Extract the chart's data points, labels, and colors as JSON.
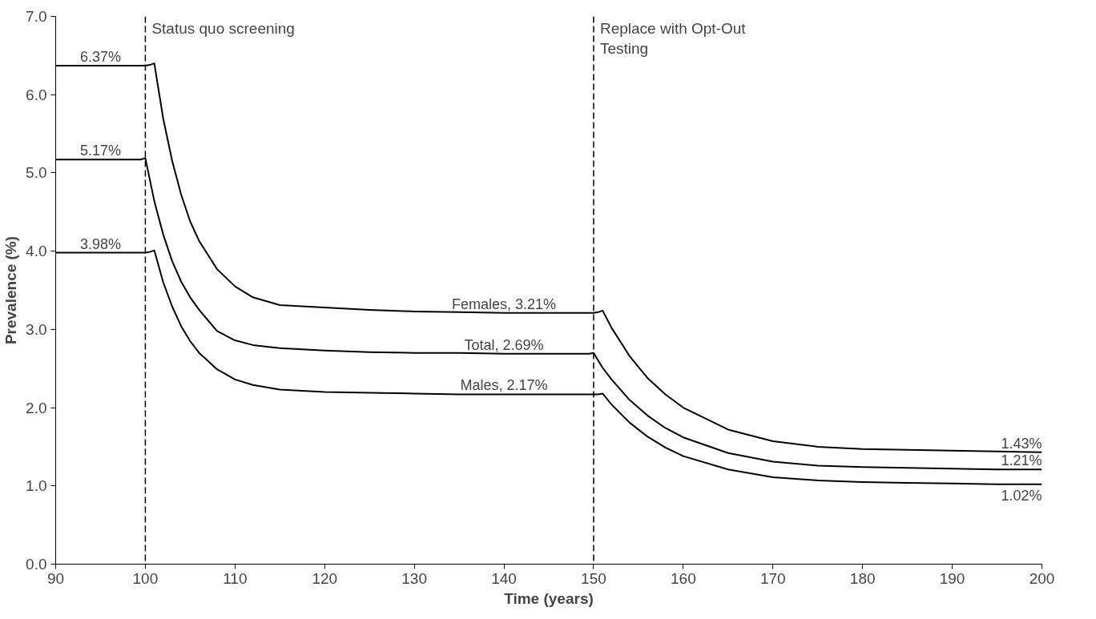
{
  "chart_data": {
    "type": "line",
    "xlabel": "Time (years)",
    "ylabel": "Prevalence (%)",
    "xlim": [
      90,
      200
    ],
    "ylim": [
      0,
      7
    ],
    "xticks": [
      90,
      100,
      110,
      120,
      130,
      140,
      150,
      160,
      170,
      180,
      190,
      200
    ],
    "yticks": [
      {
        "value": 0,
        "label": "0.0"
      },
      {
        "value": 1,
        "label": "1.0"
      },
      {
        "value": 2,
        "label": "2.0"
      },
      {
        "value": 3,
        "label": "3.0"
      },
      {
        "value": 4,
        "label": "4.0"
      },
      {
        "value": 5,
        "label": "5.0"
      },
      {
        "value": 6,
        "label": "6.0"
      },
      {
        "value": 7,
        "label": "7.0"
      }
    ],
    "grid": false,
    "line_style": "solid",
    "marker": "none",
    "series": [
      {
        "color": "#000000",
        "x": [
          90,
          100,
          100.5,
          101,
          102,
          103,
          104,
          105,
          106,
          108,
          110,
          112,
          115,
          120,
          125,
          130,
          135,
          140,
          145,
          150,
          150.5,
          151,
          152,
          154,
          156,
          158,
          160,
          165,
          170,
          175,
          180,
          185,
          190,
          195,
          200
        ],
        "values": [
          6.37,
          6.37,
          6.38,
          6.4,
          5.69,
          5.15,
          4.72,
          4.38,
          4.13,
          3.77,
          3.55,
          3.41,
          3.31,
          3.28,
          3.25,
          3.23,
          3.22,
          3.21,
          3.21,
          3.21,
          3.22,
          3.24,
          3.02,
          2.66,
          2.38,
          2.17,
          2.0,
          1.72,
          1.57,
          1.5,
          1.47,
          1.46,
          1.45,
          1.44,
          1.43
        ]
      },
      {
        "color": "#000000",
        "x": [
          90,
          99.5,
          100,
          101,
          102,
          103,
          104,
          105,
          106,
          108,
          110,
          112,
          115,
          120,
          125,
          130,
          135,
          140,
          145,
          149.5,
          150,
          151,
          152,
          154,
          156,
          158,
          160,
          165,
          170,
          175,
          180,
          185,
          190,
          195,
          200
        ],
        "values": [
          5.17,
          5.17,
          5.19,
          4.64,
          4.21,
          3.87,
          3.61,
          3.41,
          3.25,
          2.98,
          2.86,
          2.8,
          2.76,
          2.73,
          2.71,
          2.7,
          2.7,
          2.69,
          2.69,
          2.69,
          2.7,
          2.51,
          2.36,
          2.1,
          1.9,
          1.74,
          1.62,
          1.42,
          1.31,
          1.26,
          1.24,
          1.23,
          1.22,
          1.21,
          1.21
        ]
      },
      {
        "color": "#000000",
        "x": [
          90,
          100,
          100.5,
          101,
          102,
          103,
          104,
          105,
          106,
          108,
          110,
          112,
          115,
          120,
          125,
          130,
          135,
          140,
          145,
          150,
          150.5,
          151,
          152,
          154,
          156,
          158,
          160,
          165,
          170,
          175,
          180,
          185,
          190,
          195,
          200
        ],
        "values": [
          3.98,
          3.98,
          3.99,
          4.01,
          3.6,
          3.29,
          3.04,
          2.85,
          2.7,
          2.49,
          2.36,
          2.29,
          2.23,
          2.2,
          2.19,
          2.18,
          2.17,
          2.17,
          2.17,
          2.17,
          2.17,
          2.18,
          2.04,
          1.81,
          1.63,
          1.49,
          1.38,
          1.21,
          1.11,
          1.07,
          1.05,
          1.04,
          1.03,
          1.02,
          1.02
        ]
      }
    ],
    "ref_lines": [
      {
        "axis": "x",
        "value": 100,
        "label": "Status quo screening",
        "line_style": "dashed",
        "color": "#000000"
      },
      {
        "axis": "x",
        "value": 150,
        "label": "Replace with Opt-Out\nTesting",
        "line_style": "dashed",
        "color": "#000000"
      }
    ],
    "annotations": [
      {
        "text": "6.37%",
        "x": 95,
        "y": 6.37
      },
      {
        "text": "5.17%",
        "x": 95,
        "y": 5.17
      },
      {
        "text": "3.98%",
        "x": 95,
        "y": 3.98
      },
      {
        "text": "Females, 3.21%",
        "x": 140,
        "y": 3.21
      },
      {
        "text": "Total, 2.69%",
        "x": 140,
        "y": 2.69
      },
      {
        "text": "Males, 2.17%",
        "x": 140,
        "y": 2.17
      },
      {
        "text": "1.43%",
        "x": 200,
        "y": 1.43
      },
      {
        "text": "1.21%",
        "x": 200,
        "y": 1.21
      },
      {
        "text": "1.02%",
        "x": 200,
        "y": 1.02
      }
    ]
  }
}
